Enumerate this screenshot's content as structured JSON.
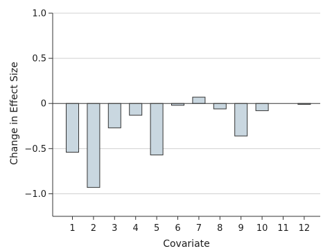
{
  "chart_data": {
    "type": "bar",
    "categories": [
      "1",
      "2",
      "3",
      "4",
      "5",
      "6",
      "7",
      "8",
      "9",
      "10",
      "11",
      "12"
    ],
    "values": [
      -0.54,
      -0.93,
      -0.27,
      -0.13,
      -0.57,
      -0.02,
      0.07,
      -0.06,
      -0.36,
      -0.08,
      0.0,
      -0.01
    ],
    "xlabel": "Covariate",
    "ylabel": "Change in Effect Size",
    "ylim": [
      -1.25,
      1.0
    ],
    "yticks": [
      1.0,
      0.5,
      0,
      -0.5,
      -1.0
    ],
    "ytick_labels": [
      "1.0",
      "0.5",
      "0",
      "−0.5",
      "−1.0"
    ],
    "grid": true,
    "colors": {
      "bar_fill": "#c9d7e0",
      "bar_stroke": "#333333",
      "grid": "#d0d0d0"
    }
  }
}
